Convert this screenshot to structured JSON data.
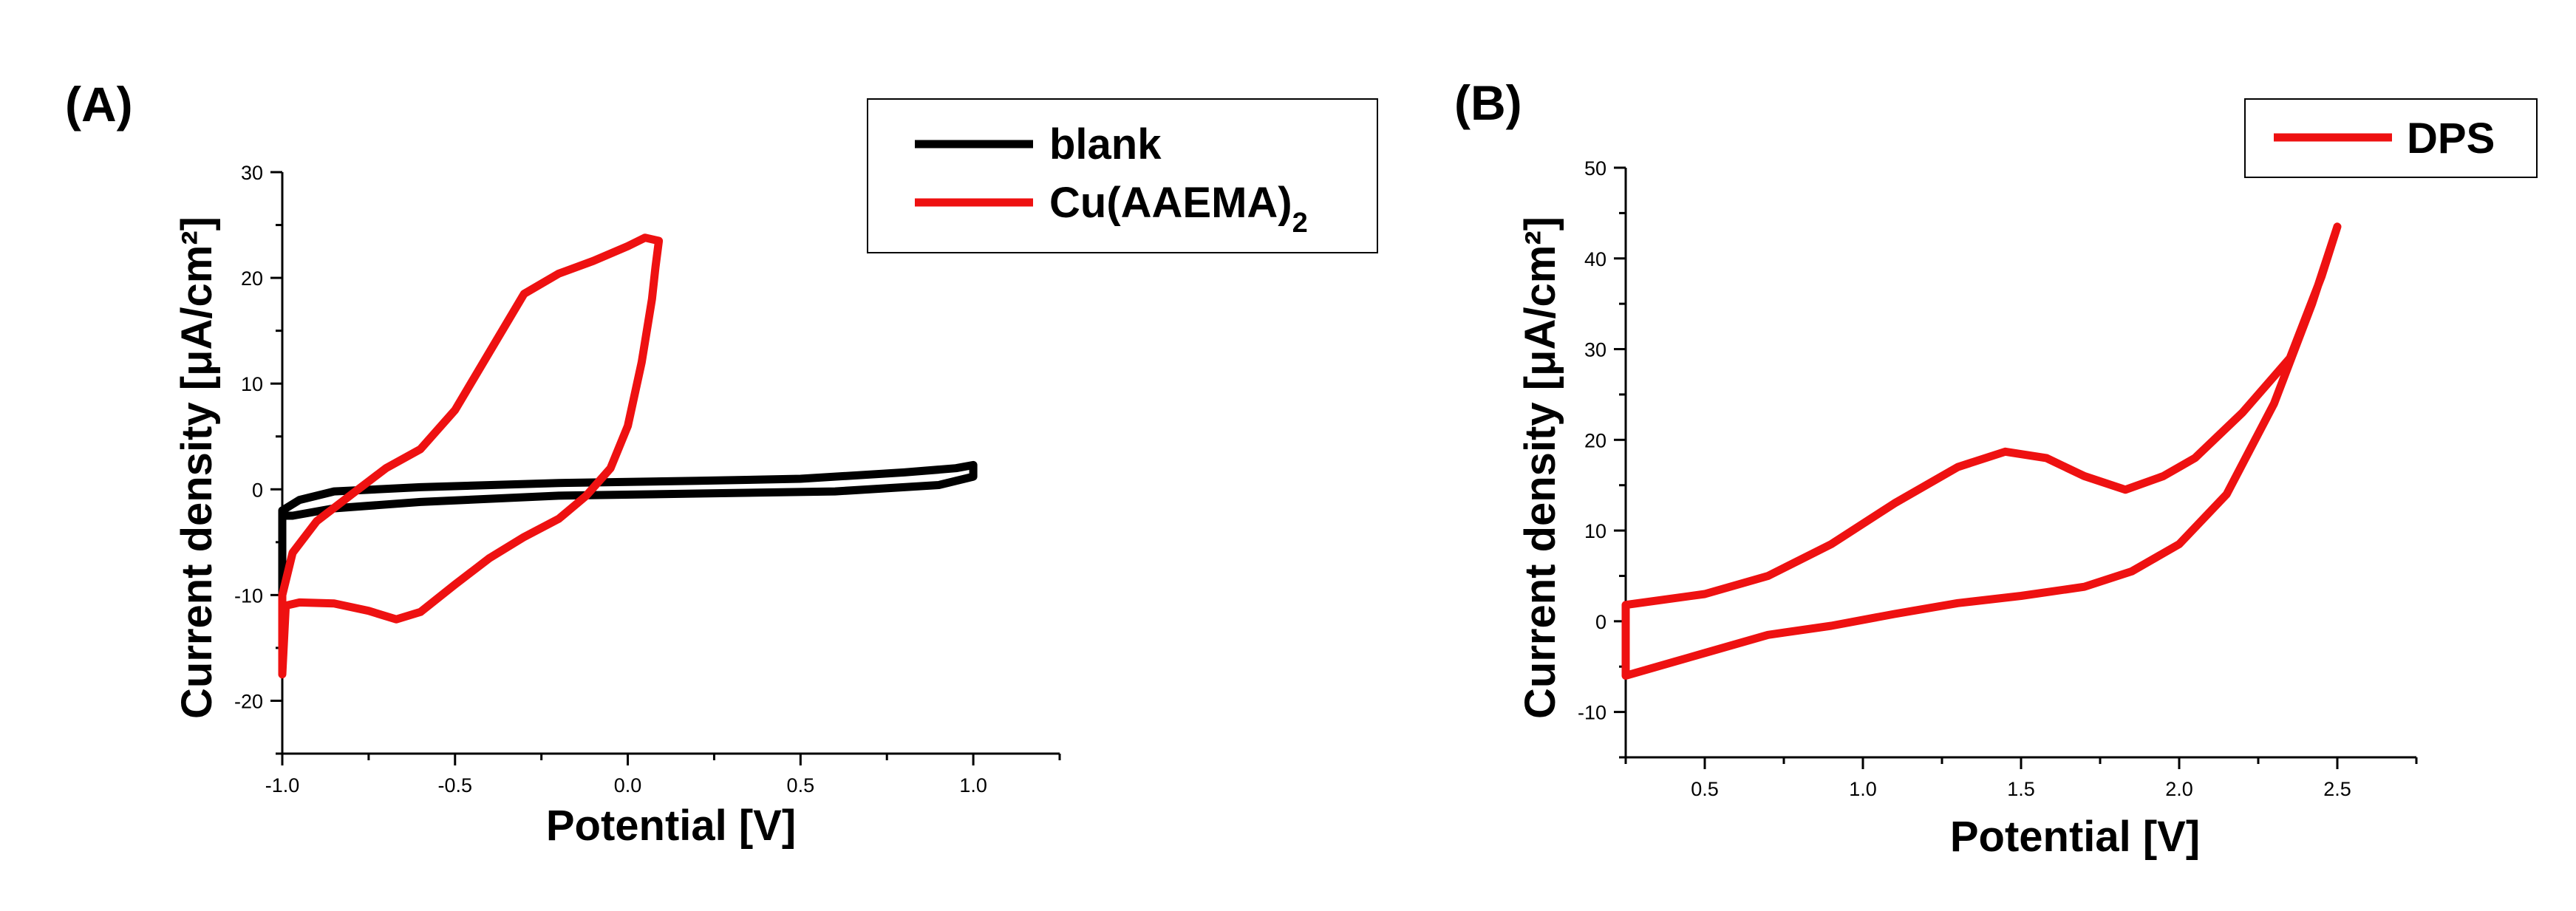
{
  "chart_data": [
    {
      "panel": "(A)",
      "type": "line",
      "xlabel": "Potential [V]",
      "ylabel": "Current density [μA/cm²]",
      "xlim": [
        -1.0,
        1.25
      ],
      "ylim": [
        -25,
        30
      ],
      "xticks": [
        -1.0,
        -0.5,
        0.0,
        0.5,
        1.0
      ],
      "xtick_labels": [
        "-1.0",
        "-0.5",
        "0.0",
        "0.5",
        "1.0"
      ],
      "yticks": [
        -20,
        -10,
        0,
        10,
        20,
        30
      ],
      "ytick_labels": [
        "-20",
        "-10",
        "0",
        "10",
        "20",
        "30"
      ],
      "legend": {
        "position": "top-right",
        "entries": [
          {
            "label": "blank",
            "color": "#000000"
          },
          {
            "label": "Cu(AAEMA)",
            "subscript": "2",
            "color": "#ee1111"
          }
        ]
      },
      "series": [
        {
          "name": "blank",
          "color": "#000000",
          "points": [
            [
              -1.0,
              -12
            ],
            [
              -1.0,
              -2.0
            ],
            [
              -0.95,
              -1.0
            ],
            [
              -0.85,
              -0.2
            ],
            [
              -0.6,
              0.2
            ],
            [
              -0.2,
              0.6
            ],
            [
              0.2,
              0.8
            ],
            [
              0.5,
              1.0
            ],
            [
              0.8,
              1.6
            ],
            [
              0.95,
              2.0
            ],
            [
              1.0,
              2.3
            ],
            [
              1.0,
              1.2
            ],
            [
              0.9,
              0.4
            ],
            [
              0.6,
              -0.2
            ],
            [
              0.2,
              -0.4
            ],
            [
              -0.2,
              -0.6
            ],
            [
              -0.6,
              -1.2
            ],
            [
              -0.85,
              -1.8
            ],
            [
              -0.97,
              -2.5
            ],
            [
              -1.0,
              -2.5
            ]
          ]
        },
        {
          "name": "Cu(AAEMA)2",
          "color": "#ee1111",
          "points": [
            [
              -1.0,
              -17.5
            ],
            [
              -0.99,
              -11.0
            ],
            [
              -0.95,
              -10.7
            ],
            [
              -0.85,
              -10.8
            ],
            [
              -0.75,
              -11.5
            ],
            [
              -0.67,
              -12.3
            ],
            [
              -0.6,
              -11.6
            ],
            [
              -0.5,
              -9.0
            ],
            [
              -0.4,
              -6.5
            ],
            [
              -0.3,
              -4.5
            ],
            [
              -0.2,
              -2.8
            ],
            [
              -0.12,
              -0.6
            ],
            [
              -0.05,
              2.0
            ],
            [
              0.0,
              6.0
            ],
            [
              0.04,
              12.0
            ],
            [
              0.07,
              18.0
            ],
            [
              0.08,
              21.0
            ],
            [
              0.09,
              23.5
            ],
            [
              0.05,
              23.8
            ],
            [
              0.0,
              23.0
            ],
            [
              -0.1,
              21.6
            ],
            [
              -0.2,
              20.4
            ],
            [
              -0.3,
              18.5
            ],
            [
              -0.4,
              13.0
            ],
            [
              -0.5,
              7.5
            ],
            [
              -0.6,
              3.8
            ],
            [
              -0.7,
              2.0
            ],
            [
              -0.8,
              -0.5
            ],
            [
              -0.9,
              -3.0
            ],
            [
              -0.97,
              -6.0
            ],
            [
              -1.0,
              -10.0
            ]
          ]
        }
      ]
    },
    {
      "panel": "(B)",
      "type": "line",
      "xlabel": "Potential [V]",
      "ylabel": "Current density [μA/cm²]",
      "xlim": [
        0.25,
        2.75
      ],
      "ylim": [
        -15,
        50
      ],
      "xticks": [
        0.5,
        1.0,
        1.5,
        2.0,
        2.5
      ],
      "xtick_labels": [
        "0.5",
        "1.0",
        "1.5",
        "2.0",
        "2.5"
      ],
      "yticks": [
        -10,
        0,
        10,
        20,
        30,
        40,
        50
      ],
      "ytick_labels": [
        "-10",
        "0",
        "10",
        "20",
        "30",
        "40",
        "50"
      ],
      "legend": {
        "position": "top-right",
        "entries": [
          {
            "label": "DPS",
            "color": "#ee1111"
          }
        ]
      },
      "series": [
        {
          "name": "DPS",
          "color": "#ee1111",
          "points": [
            [
              0.25,
              -6.0
            ],
            [
              0.5,
              -3.5
            ],
            [
              0.7,
              -1.5
            ],
            [
              0.9,
              -0.5
            ],
            [
              1.1,
              0.8
            ],
            [
              1.3,
              2.0
            ],
            [
              1.5,
              2.8
            ],
            [
              1.7,
              3.8
            ],
            [
              1.85,
              5.5
            ],
            [
              2.0,
              8.5
            ],
            [
              2.15,
              14.0
            ],
            [
              2.3,
              24.0
            ],
            [
              2.42,
              35.0
            ],
            [
              2.5,
              43.5
            ],
            [
              2.45,
              38.0
            ],
            [
              2.35,
              29.0
            ],
            [
              2.2,
              23.0
            ],
            [
              2.05,
              18.0
            ],
            [
              1.95,
              16.0
            ],
            [
              1.83,
              14.5
            ],
            [
              1.7,
              16.0
            ],
            [
              1.58,
              18.0
            ],
            [
              1.45,
              18.7
            ],
            [
              1.3,
              17.0
            ],
            [
              1.1,
              13.0
            ],
            [
              0.9,
              8.5
            ],
            [
              0.7,
              5.0
            ],
            [
              0.5,
              3.0
            ],
            [
              0.25,
              1.8
            ]
          ]
        }
      ]
    }
  ]
}
